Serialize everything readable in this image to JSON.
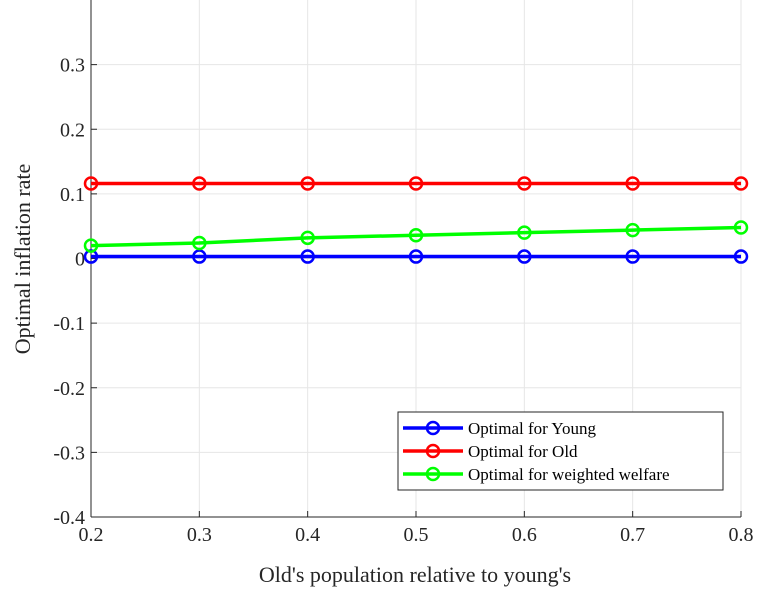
{
  "chart_data": {
    "type": "line",
    "xlabel": "Old's population relative to young's",
    "ylabel": "Optimal inflation rate",
    "x": [
      0.2,
      0.3,
      0.4,
      0.5,
      0.6,
      0.7,
      0.8
    ],
    "xlim": [
      0.2,
      0.8
    ],
    "ylim": [
      -0.4,
      0.4
    ],
    "xticks": [
      0.2,
      0.3,
      0.4,
      0.5,
      0.6,
      0.7,
      0.8
    ],
    "xtick_labels": [
      "0.2",
      "0.3",
      "0.4",
      "0.5",
      "0.6",
      "0.7",
      "0.8"
    ],
    "yticks": [
      -0.4,
      -0.3,
      -0.2,
      -0.1,
      0,
      0.1,
      0.2,
      0.3
    ],
    "ytick_labels": [
      "-0.4",
      "-0.3",
      "-0.2",
      "-0.1",
      "0",
      "0.1",
      "0.2",
      "0.3"
    ],
    "grid": true,
    "legend_position": "bottom-right",
    "series": [
      {
        "name": "Optimal for Young",
        "color": "#0000ff",
        "marker": "circle",
        "values": [
          0.003,
          0.003,
          0.003,
          0.003,
          0.003,
          0.003,
          0.003
        ]
      },
      {
        "name": "Optimal for Old",
        "color": "#ff0000",
        "marker": "circle",
        "values": [
          0.116,
          0.116,
          0.116,
          0.116,
          0.116,
          0.116,
          0.116
        ]
      },
      {
        "name": "Optimal for weighted welfare",
        "color": "#00ff00",
        "marker": "circle",
        "values": [
          0.02,
          0.024,
          0.032,
          0.036,
          0.04,
          0.044,
          0.048
        ]
      }
    ]
  }
}
